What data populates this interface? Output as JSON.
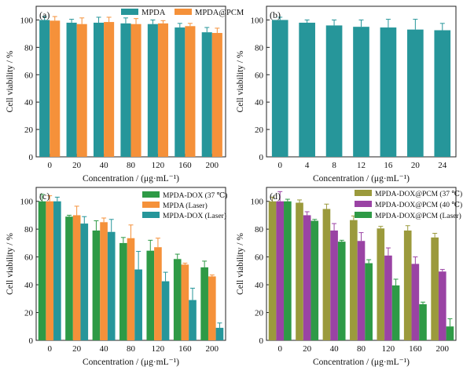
{
  "chart_data": [
    {
      "panel_label": "(a)",
      "type": "bar",
      "xlabel": "Concentration / (μg·mL⁻¹)",
      "ylabel": "Cell viability / %",
      "ylim": [
        0,
        110
      ],
      "yticks": [
        0,
        20,
        40,
        60,
        80,
        100
      ],
      "categories": [
        "0",
        "20",
        "40",
        "80",
        "120",
        "160",
        "200"
      ],
      "legend_position": "top-right",
      "series": [
        {
          "name": "MPDA",
          "color": "#26969a",
          "values": [
            100,
            98,
            98,
            97.5,
            97,
            94.5,
            91
          ],
          "errors": [
            2.5,
            2.5,
            4,
            4,
            3,
            3,
            3.5
          ]
        },
        {
          "name": "MPDA@PCM",
          "color": "#f5913a",
          "values": [
            99.5,
            97,
            98.5,
            97,
            97.5,
            95.5,
            90.5
          ],
          "errors": [
            3,
            4.5,
            3.5,
            4,
            2,
            2,
            3.5
          ]
        }
      ]
    },
    {
      "panel_label": "(b)",
      "type": "bar",
      "xlabel": "Concentration / (μg·mL⁻¹)",
      "ylabel": "Cell viability / %",
      "ylim": [
        0,
        110
      ],
      "yticks": [
        0,
        20,
        40,
        60,
        80,
        100
      ],
      "categories": [
        "0",
        "4",
        "8",
        "12",
        "16",
        "20",
        "24"
      ],
      "series": [
        {
          "name": "",
          "color": "#26969a",
          "values": [
            100,
            98,
            96,
            95,
            94.5,
            93,
            92.5
          ],
          "errors": [
            2,
            2,
            4,
            5,
            6,
            7.5,
            5
          ]
        }
      ]
    },
    {
      "panel_label": "(c)",
      "type": "bar",
      "xlabel": "Concentration / (μg·mL⁻¹)",
      "ylabel": "Cell viability / %",
      "ylim": [
        0,
        110
      ],
      "yticks": [
        0,
        20,
        40,
        60,
        80,
        100
      ],
      "categories": [
        "0",
        "20",
        "40",
        "80",
        "120",
        "160",
        "200"
      ],
      "legend_position": "top-right",
      "series": [
        {
          "name": "MPDA-DOX (37 ℃)",
          "color": "#2e9a46",
          "values": [
            100,
            89,
            79,
            70,
            64.5,
            58.5,
            52.5
          ],
          "errors": [
            5,
            1,
            7,
            4,
            7.5,
            3.5,
            4.5
          ]
        },
        {
          "name": "MPDA (Laser)",
          "color": "#f5913a",
          "values": [
            100,
            90,
            85,
            73.5,
            67,
            54.5,
            46
          ],
          "errors": [
            4,
            6.5,
            3,
            9.5,
            6.5,
            1,
            1
          ]
        },
        {
          "name": "MPDA-DOX (Laser)",
          "color": "#26969a",
          "values": [
            100,
            84,
            78,
            51,
            42.5,
            29,
            9
          ],
          "errors": [
            3,
            5,
            9,
            13,
            6.5,
            8.5,
            3.5
          ]
        }
      ]
    },
    {
      "panel_label": "(d)",
      "type": "bar",
      "xlabel": "Concentration / (μg·mL⁻¹)",
      "ylabel": "Cell viability / %",
      "ylim": [
        0,
        110
      ],
      "yticks": [
        0,
        20,
        40,
        60,
        80,
        100
      ],
      "categories": [
        "0",
        "20",
        "40",
        "80",
        "120",
        "160",
        "200"
      ],
      "legend_position": "top-right",
      "series": [
        {
          "name": "MPDA-DOX@PCM (37 ℃)",
          "color": "#9b9a3c",
          "values": [
            100,
            99,
            94.5,
            86.5,
            80.5,
            79,
            74
          ],
          "errors": [
            3,
            2,
            3.5,
            3,
            1.5,
            3.5,
            3
          ]
        },
        {
          "name": "MPDA-DOX@PCM (40 ℃)",
          "color": "#9a43a4",
          "values": [
            100,
            90,
            79,
            71.5,
            61,
            55,
            49.5
          ],
          "errors": [
            7,
            2.5,
            5,
            6,
            5.5,
            5,
            1.5
          ]
        },
        {
          "name": "MPDA-DOX@PCM (Laser)",
          "color": "#2e9a46",
          "values": [
            100,
            86,
            71,
            55.5,
            39.5,
            26,
            10
          ],
          "errors": [
            1.5,
            1,
            1,
            2.5,
            4.5,
            1.5,
            5.5
          ]
        }
      ]
    }
  ]
}
